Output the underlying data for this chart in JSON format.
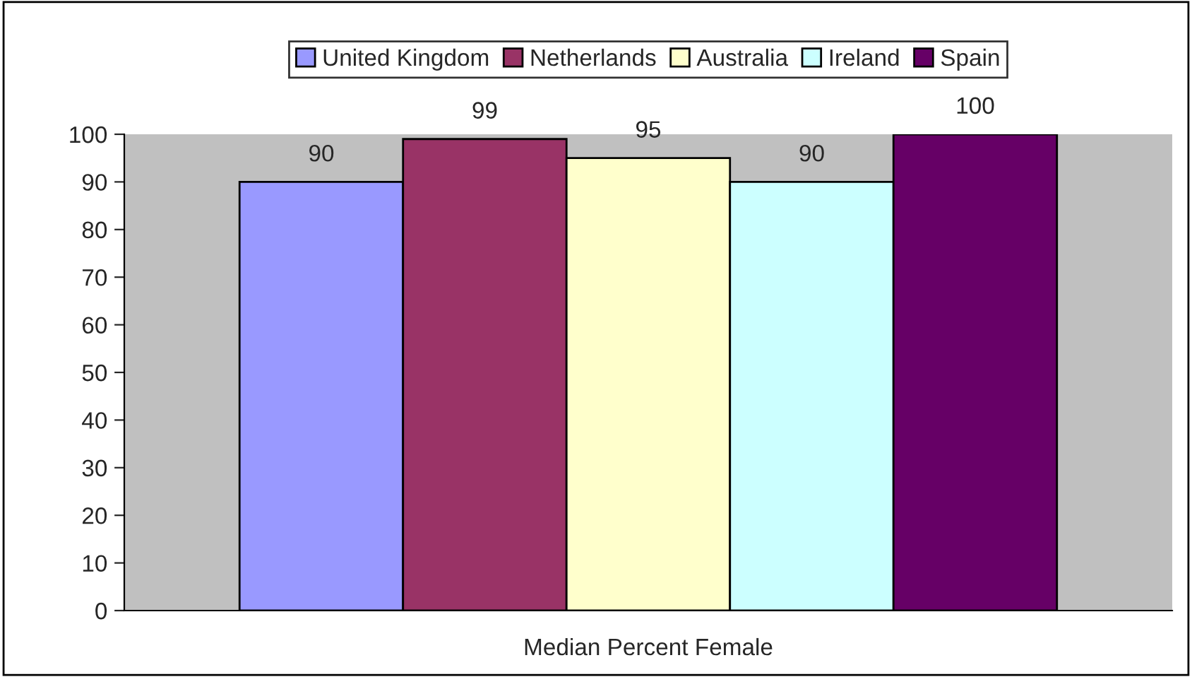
{
  "chart_data": {
    "type": "bar",
    "categories": [
      "Median Percent Female"
    ],
    "series": [
      {
        "name": "United Kingdom",
        "color": "#9999ff",
        "values": [
          90
        ]
      },
      {
        "name": "Netherlands",
        "color": "#993366",
        "values": [
          99
        ]
      },
      {
        "name": "Australia",
        "color": "#ffffcc",
        "values": [
          95
        ]
      },
      {
        "name": "Ireland",
        "color": "#ccffff",
        "values": [
          90
        ]
      },
      {
        "name": "Spain",
        "color": "#660066",
        "values": [
          100
        ]
      }
    ],
    "ylim": [
      0,
      100
    ],
    "yticks": [
      0,
      10,
      20,
      30,
      40,
      50,
      60,
      70,
      80,
      90,
      100
    ],
    "data_labels": true,
    "legend": "top",
    "grid": false
  }
}
